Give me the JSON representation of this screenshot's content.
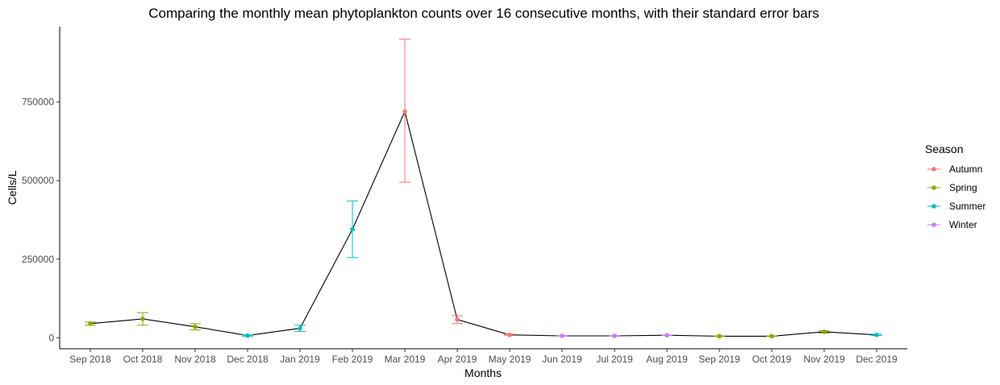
{
  "chart_data": {
    "type": "line",
    "title": "Comparing the monthly mean phytoplankton counts over 16 consecutive months, with their standard error bars",
    "xlabel": "Months",
    "ylabel": "Cells/L",
    "ylim": [
      -35000,
      990000
    ],
    "yticks": [
      0,
      250000,
      500000,
      750000
    ],
    "ytick_labels": [
      "0",
      "250000",
      "500000",
      "750000"
    ],
    "grid": false,
    "legend": {
      "title": "Season",
      "position": "right",
      "entries": [
        {
          "name": "Autumn",
          "color": "#F8766D"
        },
        {
          "name": "Spring",
          "color": "#7CAE00"
        },
        {
          "name": "Summer",
          "color": "#00BFC4"
        },
        {
          "name": "Winter",
          "color": "#C77CFF"
        }
      ]
    },
    "line_color": "#000000",
    "points": [
      {
        "month": "Sep 2018",
        "season": "Spring",
        "mean": 45000,
        "lower": 40000,
        "upper": 50000
      },
      {
        "month": "Oct 2018",
        "season": "Spring",
        "mean": 60000,
        "lower": 40000,
        "upper": 80000
      },
      {
        "month": "Nov 2018",
        "season": "Spring",
        "mean": 35000,
        "lower": 25000,
        "upper": 45000
      },
      {
        "month": "Dec 2018",
        "season": "Summer",
        "mean": 7000,
        "lower": 5000,
        "upper": 9000
      },
      {
        "month": "Jan 2019",
        "season": "Summer",
        "mean": 30000,
        "lower": 20000,
        "upper": 40000
      },
      {
        "month": "Feb 2019",
        "season": "Summer",
        "mean": 345000,
        "lower": 255000,
        "upper": 435000
      },
      {
        "month": "Mar 2019",
        "season": "Autumn",
        "mean": 720000,
        "lower": 495000,
        "upper": 950000
      },
      {
        "month": "Apr 2019",
        "season": "Autumn",
        "mean": 58000,
        "lower": 45000,
        "upper": 70000
      },
      {
        "month": "May 2019",
        "season": "Autumn",
        "mean": 9000,
        "lower": 7000,
        "upper": 11000
      },
      {
        "month": "Jun 2019",
        "season": "Winter",
        "mean": 6000,
        "lower": 5000,
        "upper": 7000
      },
      {
        "month": "Jul 2019",
        "season": "Winter",
        "mean": 6000,
        "lower": 5000,
        "upper": 7000
      },
      {
        "month": "Aug 2019",
        "season": "Winter",
        "mean": 8000,
        "lower": 7000,
        "upper": 9000
      },
      {
        "month": "Sep 2019",
        "season": "Spring",
        "mean": 5000,
        "lower": 4000,
        "upper": 6000
      },
      {
        "month": "Oct 2019",
        "season": "Spring",
        "mean": 5000,
        "lower": 4000,
        "upper": 6000
      },
      {
        "month": "Nov 2019",
        "season": "Spring",
        "mean": 19000,
        "lower": 15000,
        "upper": 23000
      },
      {
        "month": "Dec 2019",
        "season": "Summer",
        "mean": 9000,
        "lower": 7000,
        "upper": 11000
      }
    ]
  }
}
